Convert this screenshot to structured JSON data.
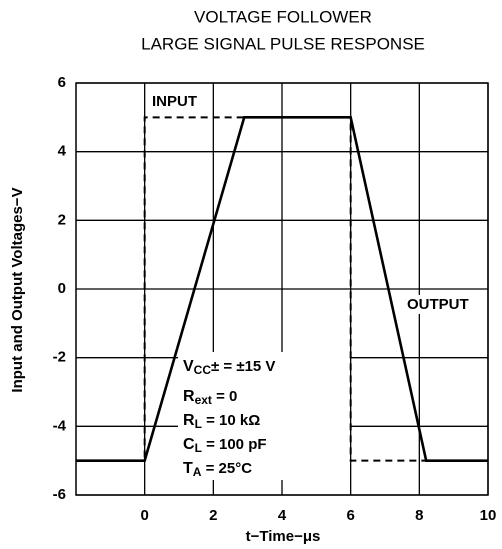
{
  "chart_data": {
    "type": "line",
    "title": [
      "VOLTAGE FOLLOWER",
      "LARGE SIGNAL PULSE RESPONSE"
    ],
    "x_label": "t−Time−μs",
    "y_label": "Input and Output Voltages−V",
    "xlim": [
      -2,
      10
    ],
    "xticks": [
      0,
      2,
      4,
      6,
      8,
      10
    ],
    "ylim": [
      -6,
      6
    ],
    "yticks": [
      6,
      4,
      2,
      0,
      -2,
      -4,
      -6
    ],
    "grid": true,
    "series": [
      {
        "name": "INPUT",
        "color": "#000000",
        "dashed": true,
        "x": [
          -2,
          0,
          0,
          6,
          6,
          10
        ],
        "values": [
          -5,
          -5,
          5,
          5,
          -5,
          -5
        ]
      },
      {
        "name": "OUTPUT",
        "color": "#000000",
        "dashed": false,
        "x": [
          -2,
          0,
          2.9,
          6,
          8.2,
          10
        ],
        "values": [
          -5,
          -5,
          5,
          5,
          -5,
          -5
        ]
      }
    ],
    "conditions": [
      {
        "symbol": "V",
        "sub": "CC",
        "rest": "±  =  ±15 V"
      },
      {
        "symbol": "R",
        "sub": "ext",
        "rest": " =  0"
      },
      {
        "symbol": "R",
        "sub": "L",
        "rest": " =  10 kΩ"
      },
      {
        "symbol": "C",
        "sub": "L",
        "rest": " =  100 pF"
      },
      {
        "symbol": "T",
        "sub": "A",
        "rest": " =  25°C"
      }
    ]
  }
}
